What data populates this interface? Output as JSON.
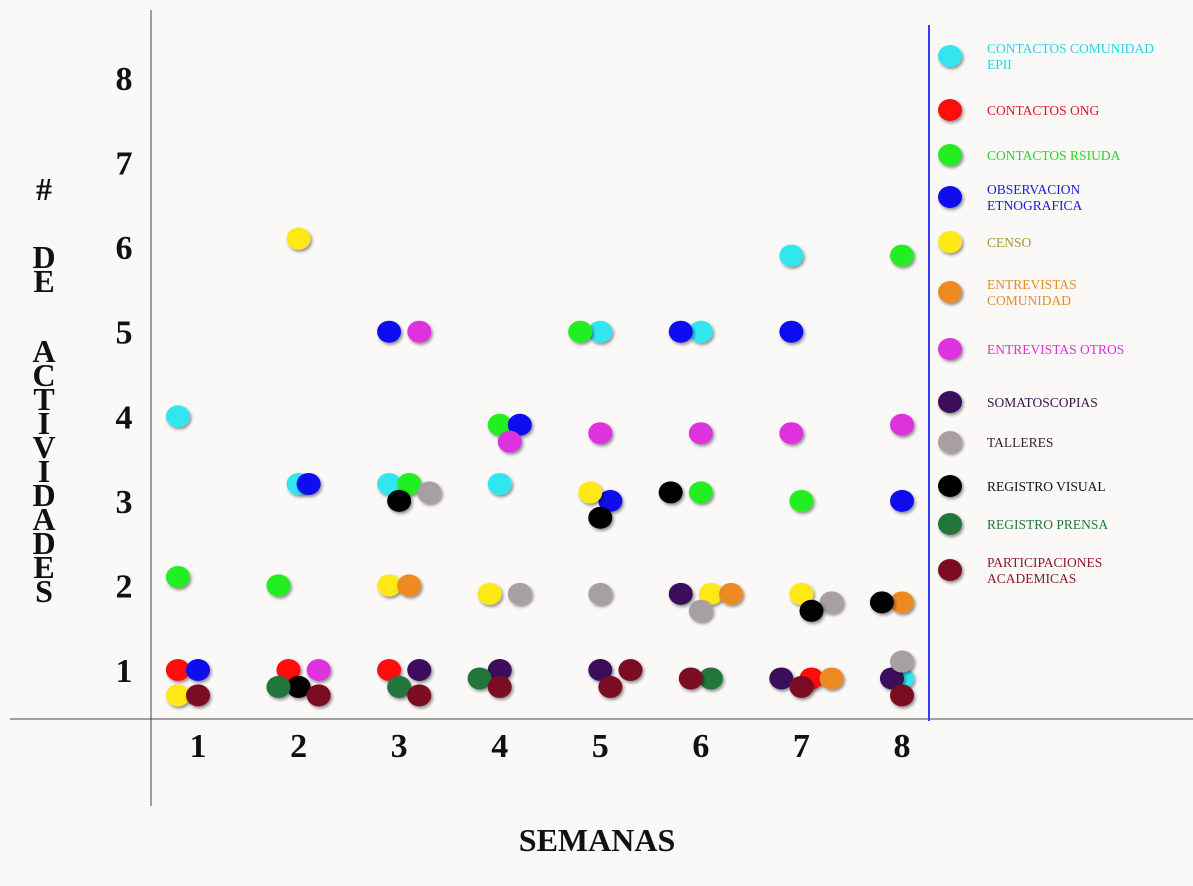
{
  "chart_data": {
    "type": "scatter",
    "xlabel": "SEMANAS",
    "ylabel": "# DE ACTIVIDADES",
    "x_ticks": [
      "1",
      "2",
      "3",
      "4",
      "5",
      "6",
      "7",
      "8"
    ],
    "y_ticks": [
      "1",
      "2",
      "3",
      "4",
      "5",
      "6",
      "7",
      "8"
    ],
    "xlim": [
      0.1,
      8.3
    ],
    "ylim": [
      0.4,
      8.6
    ],
    "grid": false,
    "legend_position": "right",
    "series": [
      {
        "name": "CONTACTOS COMUNIDAD EPII",
        "color": "#33e6f0",
        "points": [
          [
            0.8,
            4.0
          ],
          [
            2.0,
            3.2
          ],
          [
            2.9,
            3.2
          ],
          [
            4.0,
            3.2
          ],
          [
            5.0,
            5.0
          ],
          [
            6.0,
            5.0
          ],
          [
            6.9,
            5.9
          ],
          [
            8.0,
            0.9
          ]
        ]
      },
      {
        "name": "CONTACTOS ONG",
        "color": "#ff1010",
        "points": [
          [
            0.8,
            1.0
          ],
          [
            1.9,
            1.0
          ],
          [
            2.9,
            1.0
          ],
          [
            7.1,
            0.9
          ]
        ]
      },
      {
        "name": "CONTACTOS RSIUDA",
        "color": "#22ee22",
        "points": [
          [
            0.8,
            2.1
          ],
          [
            1.8,
            2.0
          ],
          [
            3.1,
            3.2
          ],
          [
            4.0,
            3.9
          ],
          [
            4.8,
            5.0
          ],
          [
            6.0,
            3.1
          ],
          [
            7.0,
            3.0
          ],
          [
            8.0,
            5.9
          ]
        ]
      },
      {
        "name": "OBSERVACION ETNOGRAFICA",
        "color": "#1010f0",
        "points": [
          [
            1.0,
            1.0
          ],
          [
            2.1,
            3.2
          ],
          [
            2.9,
            5.0
          ],
          [
            4.2,
            3.9
          ],
          [
            5.1,
            3.0
          ],
          [
            5.8,
            5.0
          ],
          [
            6.9,
            5.0
          ],
          [
            8.0,
            3.0
          ]
        ]
      },
      {
        "name": "CENSO",
        "color": "#ffe814",
        "points": [
          [
            0.8,
            0.7
          ],
          [
            2.0,
            6.1
          ],
          [
            2.9,
            2.0
          ],
          [
            3.9,
            1.9
          ],
          [
            4.9,
            3.1
          ],
          [
            6.1,
            1.9
          ],
          [
            7.0,
            1.9
          ]
        ]
      },
      {
        "name": "ENTREVISTAS COMUNIDAD",
        "color": "#ee8a22",
        "points": [
          [
            3.1,
            2.0
          ],
          [
            6.3,
            1.9
          ],
          [
            7.3,
            0.9
          ],
          [
            8.0,
            1.8
          ]
        ]
      },
      {
        "name": "ENTREVISTAS OTROS",
        "color": "#dd33dd",
        "points": [
          [
            2.2,
            1.0
          ],
          [
            3.2,
            5.0
          ],
          [
            4.1,
            3.7
          ],
          [
            5.0,
            3.8
          ],
          [
            6.0,
            3.8
          ],
          [
            6.9,
            3.8
          ],
          [
            8.0,
            3.9
          ]
        ]
      },
      {
        "name": "SOMATOSCOPIAS",
        "color": "#3a0a5a",
        "points": [
          [
            3.2,
            1.0
          ],
          [
            4.0,
            1.0
          ],
          [
            5.0,
            1.0
          ],
          [
            5.8,
            1.9
          ],
          [
            6.8,
            0.9
          ],
          [
            7.9,
            0.9
          ]
        ]
      },
      {
        "name": "TALLERES",
        "color": "#a8a0a0",
        "points": [
          [
            3.3,
            3.1
          ],
          [
            4.2,
            1.9
          ],
          [
            5.0,
            1.9
          ],
          [
            6.0,
            1.7
          ],
          [
            7.3,
            1.8
          ],
          [
            8.0,
            1.1
          ]
        ]
      },
      {
        "name": "REGISTRO VISUAL",
        "color": "#050505",
        "points": [
          [
            2.0,
            0.8
          ],
          [
            3.0,
            3.0
          ],
          [
            5.0,
            2.8
          ],
          [
            5.7,
            3.1
          ],
          [
            7.1,
            1.7
          ],
          [
            7.8,
            1.8
          ]
        ]
      },
      {
        "name": "REGISTRO PRENSA",
        "color": "#23743a",
        "points": [
          [
            1.8,
            0.8
          ],
          [
            3.0,
            0.8
          ],
          [
            3.8,
            0.9
          ],
          [
            6.1,
            0.9
          ]
        ]
      },
      {
        "name": "PARTICIPACIONES ACADEMICAS",
        "color": "#7a0a24",
        "points": [
          [
            1.0,
            0.7
          ],
          [
            2.2,
            0.7
          ],
          [
            3.2,
            0.7
          ],
          [
            4.0,
            0.8
          ],
          [
            5.1,
            0.8
          ],
          [
            5.3,
            1.0
          ],
          [
            5.9,
            0.9
          ],
          [
            7.0,
            0.8
          ],
          [
            8.0,
            0.7
          ]
        ]
      }
    ]
  },
  "legend": [
    {
      "label": "CONTACTOS COMUNIDAD EPII",
      "lines": [
        "CONTACTOS COMUNIDAD",
        "EPII"
      ],
      "color": "#33e6f0",
      "text_color": "#2ad4e6"
    },
    {
      "label": "CONTACTOS ONG",
      "lines": [
        "CONTACTOS ONG"
      ],
      "color": "#ff1010",
      "text_color": "#e8122a"
    },
    {
      "label": "CONTACTOS RSIUDA",
      "lines": [
        "CONTACTOS RSIUDA"
      ],
      "color": "#22ee22",
      "text_color": "#22d822"
    },
    {
      "label": "OBSERVACION ETNOGRAFICA",
      "lines": [
        "OBSERVACION",
        "ETNOGRAFICA"
      ],
      "color": "#1010f0",
      "text_color": "#1a1ad8"
    },
    {
      "label": "CENSO",
      "lines": [
        "CENSO"
      ],
      "color": "#ffe814",
      "text_color": "#a09a2a"
    },
    {
      "label": "ENTREVISTAS COMUNIDAD",
      "lines": [
        "ENTREVISTAS",
        "COMUNIDAD"
      ],
      "color": "#ee8a22",
      "text_color": "#e0902e"
    },
    {
      "label": "ENTREVISTAS OTROS",
      "lines": [
        "ENTREVISTAS OTROS"
      ],
      "color": "#dd33dd",
      "text_color": "#d832d8"
    },
    {
      "label": "SOMATOSCOPIAS",
      "lines": [
        "SOMATOSCOPIAS"
      ],
      "color": "#3a0a5a",
      "text_color": "#3a1050"
    },
    {
      "label": "TALLERES",
      "lines": [
        "TALLERES"
      ],
      "color": "#a8a0a0",
      "text_color": "#3a2030"
    },
    {
      "label": "REGISTRO VISUAL",
      "lines": [
        "REGISTRO VISUAL"
      ],
      "color": "#050505",
      "text_color": "#111111"
    },
    {
      "label": "REGISTRO PRENSA",
      "lines": [
        "REGISTRO PRENSA"
      ],
      "color": "#23743a",
      "text_color": "#1f7a3a"
    },
    {
      "label": "PARTICIPACIONES ACADEMICAS",
      "lines": [
        "PARTICIPACIONES",
        "ACADEMICAS"
      ],
      "color": "#7a0a24",
      "text_color": "#8a1a30"
    }
  ],
  "y_title_chars": [
    "#",
    "D",
    "E",
    "A",
    "C",
    "T",
    "I",
    "V",
    "I",
    "D",
    "A",
    "D",
    "E",
    "S"
  ]
}
